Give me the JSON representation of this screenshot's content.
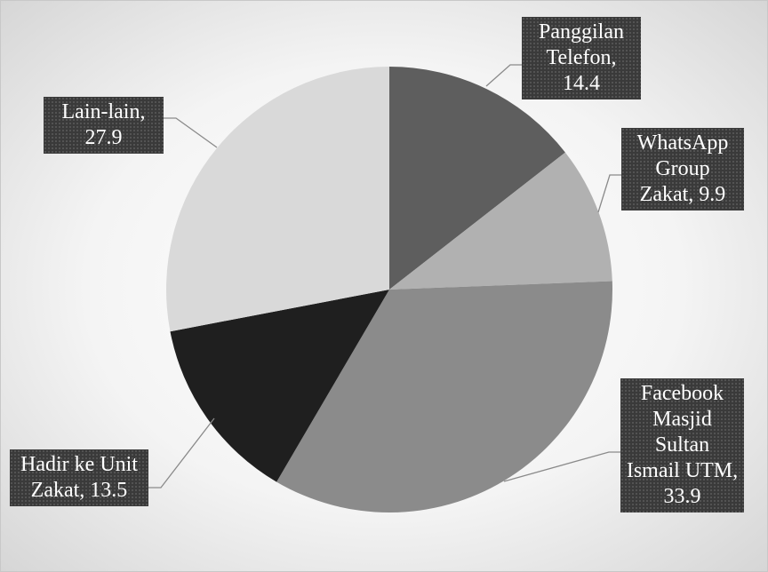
{
  "chart_data": {
    "type": "pie",
    "labels": [
      "Panggilan Telefon, 14.4",
      "WhatsApp Group Zakat, 9.9",
      "Facebook Masjid Sultan Ismail UTM, 33.9",
      "Hadir ke Unit Zakat, 13.5",
      "Lain-lain, 27.9"
    ],
    "values": [
      14.4,
      9.9,
      33.9,
      13.5,
      27.9
    ],
    "colors": [
      "#5e5e5e",
      "#b1b1b1",
      "#8b8b8b",
      "#1f1f1f",
      "#d9d9d9"
    ]
  }
}
